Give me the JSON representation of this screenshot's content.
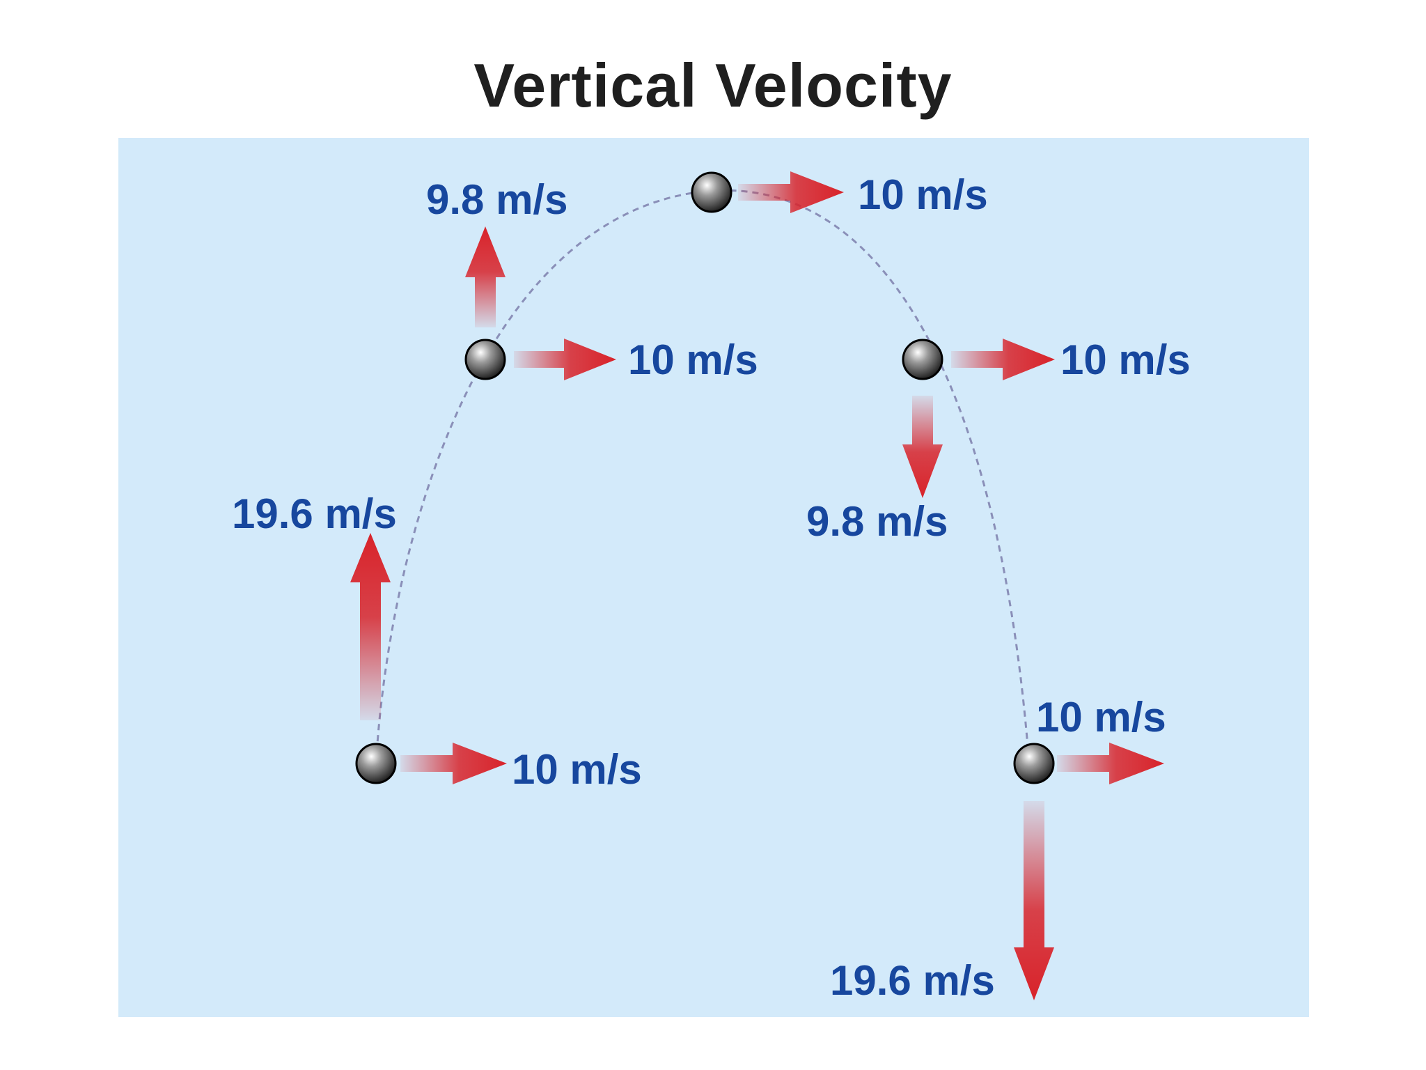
{
  "title": "Vertical Velocity",
  "colors": {
    "background": "#d3eafa",
    "arrow": "#d8232a",
    "label": "#17479e",
    "path": "#8a8fb8",
    "ball": "#1a1a1a"
  },
  "labels": {
    "launch_vertical": "19.6 m/s",
    "launch_horizontal": "10 m/s",
    "rising_vertical": "9.8 m/s",
    "rising_horizontal": "10 m/s",
    "top_horizontal": "10 m/s",
    "falling_horizontal": "10 m/s",
    "falling_vertical": "9.8 m/s",
    "landing_horizontal": "10 m/s",
    "landing_vertical": "19.6 m/s"
  }
}
